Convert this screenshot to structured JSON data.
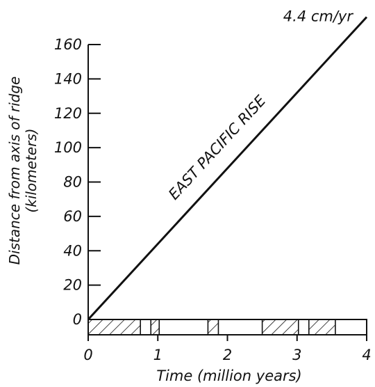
{
  "chart_data": {
    "type": "line",
    "title": "",
    "xlabel": "Time (million years)",
    "ylabel": "Distance from axis of ridge",
    "ylabel_unit": "(kilometers)",
    "xlim": [
      0,
      4
    ],
    "ylim": [
      0,
      160
    ],
    "x_ticks": [
      {
        "value": 0,
        "label": "0"
      },
      {
        "value": 1,
        "label": "1"
      },
      {
        "value": 2,
        "label": "2"
      },
      {
        "value": 3,
        "label": "3"
      },
      {
        "value": 4,
        "label": "4"
      }
    ],
    "y_ticks": [
      {
        "value": 0,
        "label": "0"
      },
      {
        "value": 20,
        "label": "20"
      },
      {
        "value": 40,
        "label": "40"
      },
      {
        "value": 60,
        "label": "60"
      },
      {
        "value": 80,
        "label": "80"
      },
      {
        "value": 100,
        "label": "100"
      },
      {
        "value": 120,
        "label": "120"
      },
      {
        "value": 140,
        "label": "140"
      },
      {
        "value": 160,
        "label": "160"
      }
    ],
    "series": [
      {
        "name": "EAST PACIFIC RISE",
        "rate_label": "4.4 cm/yr",
        "x": [
          0,
          4
        ],
        "y": [
          0,
          176
        ]
      }
    ],
    "polarity_bar": {
      "normal_intervals": [
        [
          0,
          0.75
        ],
        [
          0.9,
          1.02
        ],
        [
          1.72,
          1.87
        ],
        [
          2.5,
          3.02
        ],
        [
          3.17,
          3.55
        ]
      ],
      "reversed_intervals": [
        [
          0.75,
          0.9
        ],
        [
          1.02,
          1.72
        ],
        [
          1.87,
          2.5
        ],
        [
          3.02,
          3.17
        ],
        [
          3.55,
          4
        ]
      ]
    },
    "grid": false,
    "colors": {
      "ink": "#111111",
      "background": "#ffffff"
    }
  }
}
